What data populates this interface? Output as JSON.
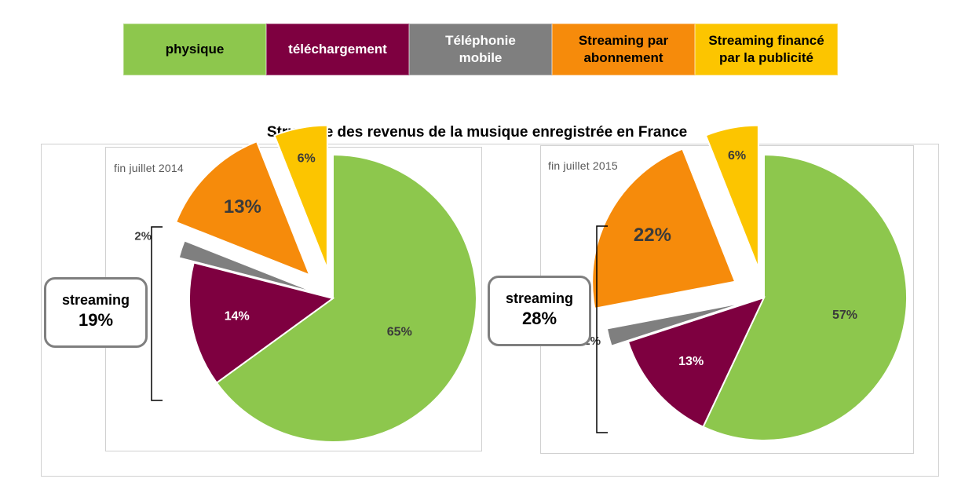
{
  "legend": [
    {
      "label": "physique",
      "color": "#8dc74d",
      "text_color": "#000000"
    },
    {
      "label": "téléchargement",
      "color": "#7e0040",
      "text_color": "#ffffff"
    },
    {
      "label": "Téléphonie mobile",
      "color": "#7f7f7f",
      "text_color": "#ffffff"
    },
    {
      "label": "Streaming par abonnement",
      "color": "#f68b0b",
      "text_color": "#000000"
    },
    {
      "label": "Streaming financé par la publicité",
      "color": "#fcc500",
      "text_color": "#000000"
    }
  ],
  "title": "Structure des revenus de la musique enregistrée en France",
  "streaming_label": "streaming",
  "chart_data": [
    {
      "type": "pie",
      "label": "fin juillet 2014",
      "streaming_total": "19%",
      "slices": [
        {
          "name": "physique",
          "value": 65,
          "label": "65%",
          "color": "#8dc74d"
        },
        {
          "name": "téléchargement",
          "value": 14,
          "label": "14%",
          "color": "#7e0040"
        },
        {
          "name": "Téléphonie mobile",
          "value": 2,
          "label": "2%",
          "color": "#7f7f7f"
        },
        {
          "name": "Streaming par abonnement",
          "value": 13,
          "label": "13%",
          "color": "#f68b0b"
        },
        {
          "name": "Streaming financé par la publicité",
          "value": 6,
          "label": "6%",
          "color": "#fcc500"
        }
      ]
    },
    {
      "type": "pie",
      "label": "fin juillet 2015",
      "streaming_total": "28%",
      "slices": [
        {
          "name": "physique",
          "value": 57,
          "label": "57%",
          "color": "#8dc74d"
        },
        {
          "name": "téléchargement",
          "value": 13,
          "label": "13%",
          "color": "#7e0040"
        },
        {
          "name": "Téléphonie mobile",
          "value": 2,
          "label": "2%",
          "color": "#7f7f7f"
        },
        {
          "name": "Streaming par abonnement",
          "value": 22,
          "label": "22%",
          "color": "#f68b0b"
        },
        {
          "name": "Streaming financé par la publicité",
          "value": 6,
          "label": "6%",
          "color": "#fcc500"
        }
      ]
    }
  ]
}
